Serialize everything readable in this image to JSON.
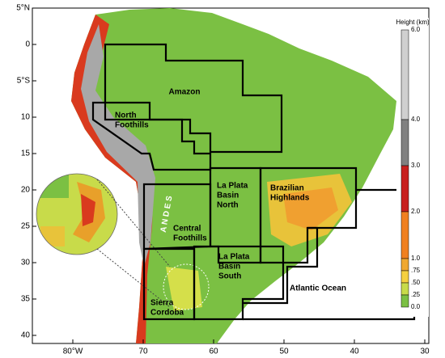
{
  "map": {
    "lat_labels": [
      "5°N",
      "0",
      "5°S",
      "10",
      "15",
      "20",
      "25",
      "30",
      "35",
      "40"
    ],
    "lon_labels": [
      "80°W",
      "70",
      "60",
      "50",
      "40",
      "30"
    ],
    "legend": {
      "title": "Height (km)",
      "ticks": [
        "6.0",
        "4.0",
        "3.0",
        "2.0",
        "1.0",
        ".75",
        ".50",
        ".25",
        "0.0"
      ]
    },
    "regions": [
      {
        "lines": [
          "Amazon"
        ]
      },
      {
        "lines": [
          "North",
          "Foothills"
        ]
      },
      {
        "lines": [
          "La Plata",
          "Basin",
          "North"
        ]
      },
      {
        "lines": [
          "Brazilian",
          "Highlands"
        ]
      },
      {
        "lines": [
          "Central",
          "Foothills"
        ]
      },
      {
        "lines": [
          "La Plata",
          "Basin",
          "South"
        ]
      },
      {
        "lines": [
          "Sierra",
          "Cordoba"
        ]
      },
      {
        "lines": [
          "A N D E S"
        ]
      },
      {
        "lines": [
          "Atlantic Ocean"
        ]
      }
    ]
  }
}
